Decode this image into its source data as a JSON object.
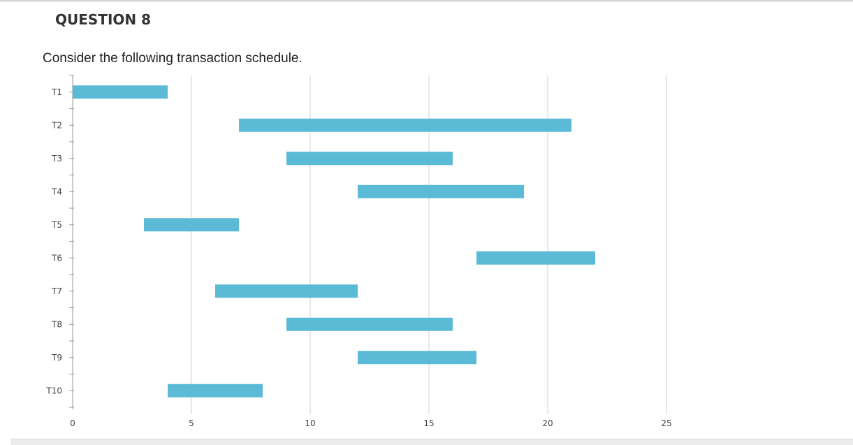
{
  "question": {
    "title": "QUESTION 8",
    "text": "Consider the following transaction schedule."
  },
  "chart_data": {
    "type": "bar",
    "orientation": "horizontal-gantt",
    "categories": [
      "T1",
      "T2",
      "T3",
      "T4",
      "T5",
      "T6",
      "T7",
      "T8",
      "T9",
      "T10"
    ],
    "start": [
      0,
      7,
      9,
      12,
      3,
      17,
      6,
      9,
      12,
      4
    ],
    "end": [
      4,
      21,
      16,
      19,
      7,
      22,
      12,
      16,
      17,
      8
    ],
    "xlim": [
      0,
      25
    ],
    "xticks": [
      0,
      5,
      10,
      15,
      20,
      25
    ],
    "grid": true,
    "bar_color": "#5bbad5",
    "grid_color": "#d0d0d0"
  }
}
